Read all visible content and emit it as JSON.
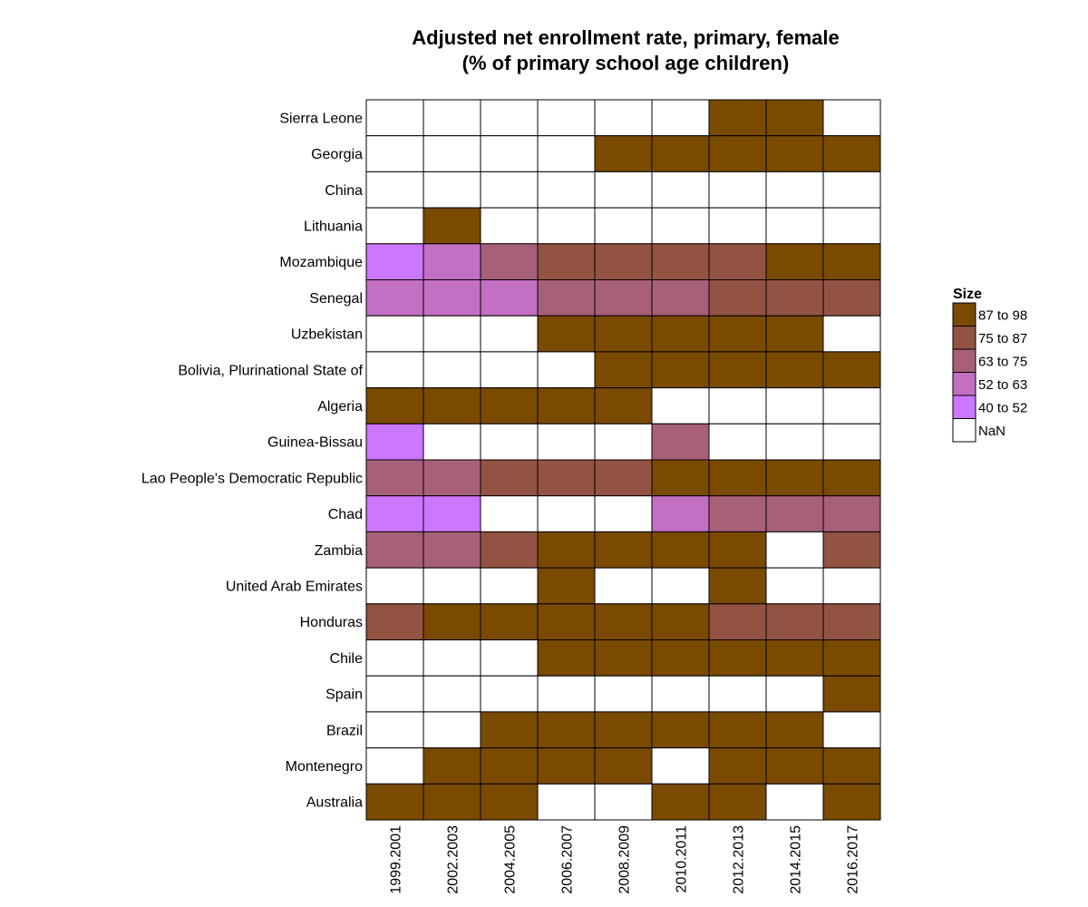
{
  "chart_data": {
    "type": "heatmap",
    "title": [
      "Adjusted net enrollment rate, primary, female",
      "(% of primary school age children)"
    ],
    "x_categories": [
      "1999.2001",
      "2002.2003",
      "2004.2005",
      "2006.2007",
      "2008.2009",
      "2010.2011",
      "2012.2013",
      "2014.2015",
      "2016.2017"
    ],
    "y_categories": [
      "Sierra Leone",
      "Georgia",
      "China",
      "Lithuania",
      "Mozambique",
      "Senegal",
      "Uzbekistan",
      "Bolivia, Plurinational State of",
      "Algeria",
      "Guinea-Bissau",
      "Lao People's Democratic Republic",
      "Chad",
      "Zambia",
      "United Arab Emirates",
      "Honduras",
      "Chile",
      "Spain",
      "Brazil",
      "Montenegro",
      "Australia"
    ],
    "legend": {
      "title": "Size",
      "position": "right",
      "bins": [
        {
          "label": "87 to 98",
          "color": "#7a4a00"
        },
        {
          "label": "75 to 87",
          "color": "#935343"
        },
        {
          "label": "63 to 75",
          "color": "#a8607a"
        },
        {
          "label": "52 to 63",
          "color": "#c26fc4"
        },
        {
          "label": "40 to 52",
          "color": "#cc77ff"
        },
        {
          "label": "NaN",
          "color": "#ffffff"
        }
      ]
    },
    "cells": [
      [
        "NaN",
        "NaN",
        "NaN",
        "NaN",
        "NaN",
        "NaN",
        "87 to 98",
        "87 to 98",
        "NaN"
      ],
      [
        "NaN",
        "NaN",
        "NaN",
        "NaN",
        "87 to 98",
        "87 to 98",
        "87 to 98",
        "87 to 98",
        "87 to 98"
      ],
      [
        "NaN",
        "NaN",
        "NaN",
        "NaN",
        "NaN",
        "NaN",
        "NaN",
        "NaN",
        "NaN"
      ],
      [
        "NaN",
        "87 to 98",
        "NaN",
        "NaN",
        "NaN",
        "NaN",
        "NaN",
        "NaN",
        "NaN"
      ],
      [
        "40 to 52",
        "52 to 63",
        "63 to 75",
        "75 to 87",
        "75 to 87",
        "75 to 87",
        "75 to 87",
        "87 to 98",
        "87 to 98"
      ],
      [
        "52 to 63",
        "52 to 63",
        "52 to 63",
        "63 to 75",
        "63 to 75",
        "63 to 75",
        "75 to 87",
        "75 to 87",
        "75 to 87"
      ],
      [
        "NaN",
        "NaN",
        "NaN",
        "87 to 98",
        "87 to 98",
        "87 to 98",
        "87 to 98",
        "87 to 98",
        "NaN"
      ],
      [
        "NaN",
        "NaN",
        "NaN",
        "NaN",
        "87 to 98",
        "87 to 98",
        "87 to 98",
        "87 to 98",
        "87 to 98"
      ],
      [
        "87 to 98",
        "87 to 98",
        "87 to 98",
        "87 to 98",
        "87 to 98",
        "NaN",
        "NaN",
        "NaN",
        "NaN"
      ],
      [
        "40 to 52",
        "NaN",
        "NaN",
        "NaN",
        "NaN",
        "63 to 75",
        "NaN",
        "NaN",
        "NaN"
      ],
      [
        "63 to 75",
        "63 to 75",
        "75 to 87",
        "75 to 87",
        "75 to 87",
        "87 to 98",
        "87 to 98",
        "87 to 98",
        "87 to 98"
      ],
      [
        "40 to 52",
        "40 to 52",
        "NaN",
        "NaN",
        "NaN",
        "52 to 63",
        "63 to 75",
        "63 to 75",
        "63 to 75"
      ],
      [
        "63 to 75",
        "63 to 75",
        "75 to 87",
        "87 to 98",
        "87 to 98",
        "87 to 98",
        "87 to 98",
        "NaN",
        "75 to 87"
      ],
      [
        "NaN",
        "NaN",
        "NaN",
        "87 to 98",
        "NaN",
        "NaN",
        "87 to 98",
        "NaN",
        "NaN"
      ],
      [
        "75 to 87",
        "87 to 98",
        "87 to 98",
        "87 to 98",
        "87 to 98",
        "87 to 98",
        "75 to 87",
        "75 to 87",
        "75 to 87"
      ],
      [
        "NaN",
        "NaN",
        "NaN",
        "87 to 98",
        "87 to 98",
        "87 to 98",
        "87 to 98",
        "87 to 98",
        "87 to 98"
      ],
      [
        "NaN",
        "NaN",
        "NaN",
        "NaN",
        "NaN",
        "NaN",
        "NaN",
        "NaN",
        "87 to 98"
      ],
      [
        "NaN",
        "NaN",
        "87 to 98",
        "87 to 98",
        "87 to 98",
        "87 to 98",
        "87 to 98",
        "87 to 98",
        "NaN"
      ],
      [
        "NaN",
        "87 to 98",
        "87 to 98",
        "87 to 98",
        "87 to 98",
        "NaN",
        "87 to 98",
        "87 to 98",
        "87 to 98"
      ],
      [
        "87 to 98",
        "87 to 98",
        "87 to 98",
        "NaN",
        "NaN",
        "87 to 98",
        "87 to 98",
        "NaN",
        "87 to 98"
      ]
    ]
  }
}
